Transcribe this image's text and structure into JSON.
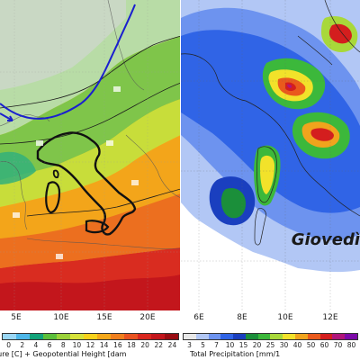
{
  "left_map": {
    "longitude_ticks": [
      "5E",
      "10E",
      "15E",
      "20E"
    ],
    "legend_values": [
      "0",
      "2",
      "4",
      "6",
      "8",
      "10",
      "12",
      "14",
      "16",
      "18",
      "20",
      "22",
      "24"
    ],
    "legend_colors": [
      "#9ad7f5",
      "#4db6e8",
      "#12a37a",
      "#5bbf3b",
      "#9bd23a",
      "#d6e23a",
      "#f7d21b",
      "#f5a81a",
      "#f07f1d",
      "#e95320",
      "#d9271f",
      "#c3161c",
      "#9a0d12"
    ],
    "legend_caption": "ture [C] + Geopotential Height [dam",
    "contour_labels": [
      "544",
      "552",
      "560",
      "568",
      "576"
    ]
  },
  "right_map": {
    "longitude_ticks": [
      "6E",
      "8E",
      "10E",
      "12E"
    ],
    "legend_values": [
      "3",
      "5",
      "7",
      "10",
      "15",
      "20",
      "25",
      "30",
      "40",
      "50",
      "60",
      "70",
      "80"
    ],
    "legend_colors": [
      "#e8e8e8",
      "#b2c7f5",
      "#6d93ef",
      "#3064e6",
      "#1a3fbf",
      "#1b8f3a",
      "#3cb83b",
      "#a8d83a",
      "#f2e22a",
      "#f0a41d",
      "#ea5a1c",
      "#d41e1e",
      "#b0157a",
      "#7c0aa8"
    ],
    "legend_caption": "Total Precipitation [mm/1",
    "day_label": "Giovedì"
  }
}
